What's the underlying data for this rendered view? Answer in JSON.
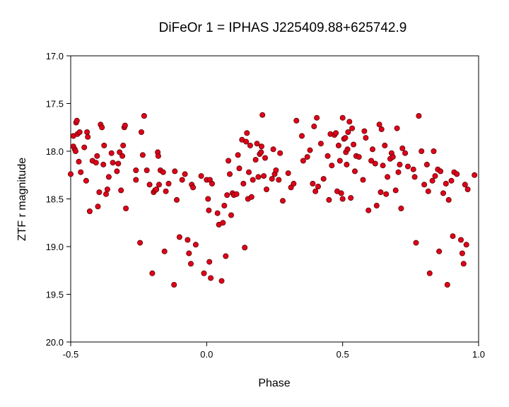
{
  "chart_data": {
    "type": "scatter",
    "title": "DiFeOr 1 = IPHAS J225409.88+625742.9",
    "xlabel": "Phase",
    "ylabel": "ZTF r magnitude",
    "xlim": [
      -0.5,
      1.0
    ],
    "ylim": [
      17.0,
      20.0
    ],
    "y_inverted": true,
    "xticks": [
      -0.5,
      0.0,
      0.5,
      1.0
    ],
    "xtick_labels": [
      "-0.5",
      "0.0",
      "0.5",
      "1.0"
    ],
    "yticks": [
      17.0,
      17.5,
      18.0,
      18.5,
      19.0,
      19.5,
      20.0
    ],
    "ytick_labels": [
      "17.0",
      "17.5",
      "18.0",
      "18.5",
      "19.0",
      "19.5",
      "20.0"
    ],
    "grid": false,
    "legend": "none",
    "colors": {
      "marker_fill": "#e0001a",
      "marker_edge": "#5a0000",
      "axes": "#000000"
    },
    "series": [
      {
        "points": [
          [
            -0.5,
            18.24
          ],
          [
            -0.49,
            17.95
          ],
          [
            -0.49,
            17.84
          ],
          [
            -0.485,
            17.98
          ],
          [
            -0.482,
            18.0
          ],
          [
            -0.48,
            17.7
          ],
          [
            -0.477,
            17.68
          ],
          [
            -0.475,
            17.82
          ],
          [
            -0.47,
            18.11
          ],
          [
            -0.467,
            17.8
          ],
          [
            -0.463,
            18.22
          ],
          [
            -0.45,
            17.96
          ],
          [
            -0.443,
            18.31
          ],
          [
            -0.44,
            17.8
          ],
          [
            -0.437,
            17.85
          ],
          [
            -0.43,
            18.63
          ],
          [
            -0.42,
            18.1
          ],
          [
            -0.407,
            18.12
          ],
          [
            -0.403,
            18.05
          ],
          [
            -0.4,
            18.58
          ],
          [
            -0.395,
            18.43
          ],
          [
            -0.39,
            17.72
          ],
          [
            -0.385,
            17.75
          ],
          [
            -0.38,
            18.14
          ],
          [
            -0.377,
            17.94
          ],
          [
            -0.37,
            18.45
          ],
          [
            -0.365,
            18.4
          ],
          [
            -0.36,
            18.27
          ],
          [
            -0.35,
            18.02
          ],
          [
            -0.345,
            18.12
          ],
          [
            -0.33,
            18.21
          ],
          [
            -0.325,
            18.13
          ],
          [
            -0.32,
            18.01
          ],
          [
            -0.315,
            18.41
          ],
          [
            -0.31,
            18.05
          ],
          [
            -0.307,
            17.94
          ],
          [
            -0.303,
            17.75
          ],
          [
            -0.3,
            17.73
          ],
          [
            -0.297,
            18.6
          ],
          [
            -0.26,
            18.3
          ],
          [
            -0.26,
            18.2
          ],
          [
            -0.245,
            18.96
          ],
          [
            -0.24,
            17.8
          ],
          [
            -0.235,
            18.04
          ],
          [
            -0.23,
            17.63
          ],
          [
            -0.22,
            18.2
          ],
          [
            -0.21,
            18.35
          ],
          [
            -0.2,
            19.28
          ],
          [
            -0.195,
            18.43
          ],
          [
            -0.19,
            18.41
          ],
          [
            -0.185,
            18.4
          ],
          [
            -0.18,
            18.01
          ],
          [
            -0.178,
            18.05
          ],
          [
            -0.175,
            18.35
          ],
          [
            -0.17,
            18.2
          ],
          [
            -0.16,
            18.22
          ],
          [
            -0.155,
            19.05
          ],
          [
            -0.15,
            18.42
          ],
          [
            -0.14,
            18.34
          ],
          [
            -0.12,
            19.4
          ],
          [
            -0.117,
            18.21
          ],
          [
            -0.11,
            18.51
          ],
          [
            -0.1,
            18.9
          ],
          [
            -0.09,
            18.3
          ],
          [
            -0.08,
            18.24
          ],
          [
            -0.07,
            18.93
          ],
          [
            -0.065,
            19.07
          ],
          [
            -0.058,
            19.18
          ],
          [
            -0.055,
            18.35
          ],
          [
            -0.05,
            18.38
          ],
          [
            -0.04,
            18.98
          ],
          [
            -0.02,
            18.26
          ],
          [
            -0.01,
            19.28
          ],
          [
            0.0,
            18.3
          ],
          [
            0.005,
            18.5
          ],
          [
            0.008,
            18.62
          ],
          [
            0.01,
            19.16
          ],
          [
            0.012,
            18.3
          ],
          [
            0.015,
            19.33
          ],
          [
            0.02,
            18.34
          ],
          [
            0.04,
            18.65
          ],
          [
            0.045,
            18.77
          ],
          [
            0.055,
            19.36
          ],
          [
            0.06,
            18.75
          ],
          [
            0.065,
            18.57
          ],
          [
            0.07,
            19.1
          ],
          [
            0.075,
            18.46
          ],
          [
            0.08,
            18.1
          ],
          [
            0.085,
            18.24
          ],
          [
            0.09,
            18.67
          ],
          [
            0.095,
            18.44
          ],
          [
            0.1,
            18.46
          ],
          [
            0.11,
            18.45
          ],
          [
            0.115,
            18.04
          ],
          [
            0.12,
            18.18
          ],
          [
            0.13,
            17.88
          ],
          [
            0.135,
            18.34
          ],
          [
            0.14,
            19.01
          ],
          [
            0.145,
            17.9
          ],
          [
            0.148,
            17.81
          ],
          [
            0.152,
            18.5
          ],
          [
            0.155,
            18.22
          ],
          [
            0.16,
            17.94
          ],
          [
            0.165,
            18.48
          ],
          [
            0.17,
            18.3
          ],
          [
            0.18,
            18.09
          ],
          [
            0.185,
            17.92
          ],
          [
            0.19,
            18.27
          ],
          [
            0.195,
            18.03
          ],
          [
            0.2,
            18.01
          ],
          [
            0.202,
            17.95
          ],
          [
            0.205,
            17.62
          ],
          [
            0.21,
            18.26
          ],
          [
            0.215,
            18.07
          ],
          [
            0.22,
            18.4
          ],
          [
            0.24,
            18.29
          ],
          [
            0.245,
            17.98
          ],
          [
            0.25,
            18.24
          ],
          [
            0.255,
            18.2
          ],
          [
            0.265,
            18.3
          ],
          [
            0.27,
            18.02
          ],
          [
            0.28,
            18.52
          ],
          [
            0.3,
            18.23
          ],
          [
            0.31,
            18.38
          ],
          [
            0.32,
            18.34
          ],
          [
            0.33,
            17.68
          ],
          [
            0.35,
            17.84
          ],
          [
            0.355,
            18.1
          ],
          [
            0.37,
            18.06
          ],
          [
            0.38,
            17.99
          ],
          [
            0.39,
            18.34
          ],
          [
            0.395,
            17.74
          ],
          [
            0.4,
            18.42
          ],
          [
            0.405,
            17.65
          ],
          [
            0.41,
            18.37
          ],
          [
            0.42,
            17.92
          ],
          [
            0.43,
            18.29
          ],
          [
            0.445,
            18.05
          ],
          [
            0.45,
            18.51
          ],
          [
            0.455,
            17.82
          ],
          [
            0.46,
            18.15
          ],
          [
            0.47,
            17.83
          ],
          [
            0.475,
            17.81
          ],
          [
            0.48,
            18.42
          ],
          [
            0.485,
            17.94
          ],
          [
            0.49,
            18.1
          ],
          [
            0.495,
            18.44
          ],
          [
            0.5,
            18.5
          ],
          [
            0.5,
            17.65
          ],
          [
            0.505,
            17.87
          ],
          [
            0.51,
            17.86
          ],
          [
            0.512,
            18.01
          ],
          [
            0.515,
            18.14
          ],
          [
            0.518,
            17.98
          ],
          [
            0.52,
            17.8
          ],
          [
            0.525,
            17.69
          ],
          [
            0.53,
            18.49
          ],
          [
            0.535,
            17.76
          ],
          [
            0.54,
            17.93
          ],
          [
            0.545,
            18.21
          ],
          [
            0.55,
            18.05
          ],
          [
            0.56,
            18.06
          ],
          [
            0.575,
            18.3
          ],
          [
            0.58,
            17.79
          ],
          [
            0.585,
            17.86
          ],
          [
            0.595,
            18.62
          ],
          [
            0.605,
            18.1
          ],
          [
            0.61,
            17.98
          ],
          [
            0.62,
            18.13
          ],
          [
            0.625,
            18.57
          ],
          [
            0.635,
            17.72
          ],
          [
            0.64,
            18.43
          ],
          [
            0.643,
            17.77
          ],
          [
            0.648,
            18.15
          ],
          [
            0.655,
            17.94
          ],
          [
            0.66,
            18.45
          ],
          [
            0.665,
            18.27
          ],
          [
            0.675,
            18.08
          ],
          [
            0.68,
            18.02
          ],
          [
            0.685,
            18.06
          ],
          [
            0.695,
            18.41
          ],
          [
            0.7,
            17.76
          ],
          [
            0.705,
            18.22
          ],
          [
            0.71,
            18.14
          ],
          [
            0.715,
            18.6
          ],
          [
            0.72,
            17.97
          ],
          [
            0.73,
            18.02
          ],
          [
            0.74,
            18.16
          ],
          [
            0.76,
            18.19
          ],
          [
            0.765,
            18.27
          ],
          [
            0.77,
            18.96
          ],
          [
            0.78,
            17.63
          ],
          [
            0.79,
            18.0
          ],
          [
            0.8,
            18.35
          ],
          [
            0.81,
            18.14
          ],
          [
            0.815,
            18.42
          ],
          [
            0.82,
            19.28
          ],
          [
            0.83,
            18.31
          ],
          [
            0.835,
            18.0
          ],
          [
            0.84,
            18.26
          ],
          [
            0.85,
            18.19
          ],
          [
            0.855,
            19.05
          ],
          [
            0.86,
            18.21
          ],
          [
            0.87,
            18.44
          ],
          [
            0.88,
            18.34
          ],
          [
            0.885,
            19.4
          ],
          [
            0.89,
            18.51
          ],
          [
            0.9,
            18.31
          ],
          [
            0.905,
            18.89
          ],
          [
            0.91,
            18.22
          ],
          [
            0.92,
            18.24
          ],
          [
            0.935,
            18.93
          ],
          [
            0.94,
            19.07
          ],
          [
            0.945,
            19.18
          ],
          [
            0.95,
            18.35
          ],
          [
            0.955,
            18.98
          ],
          [
            0.96,
            18.4
          ],
          [
            0.985,
            18.25
          ]
        ]
      }
    ]
  }
}
